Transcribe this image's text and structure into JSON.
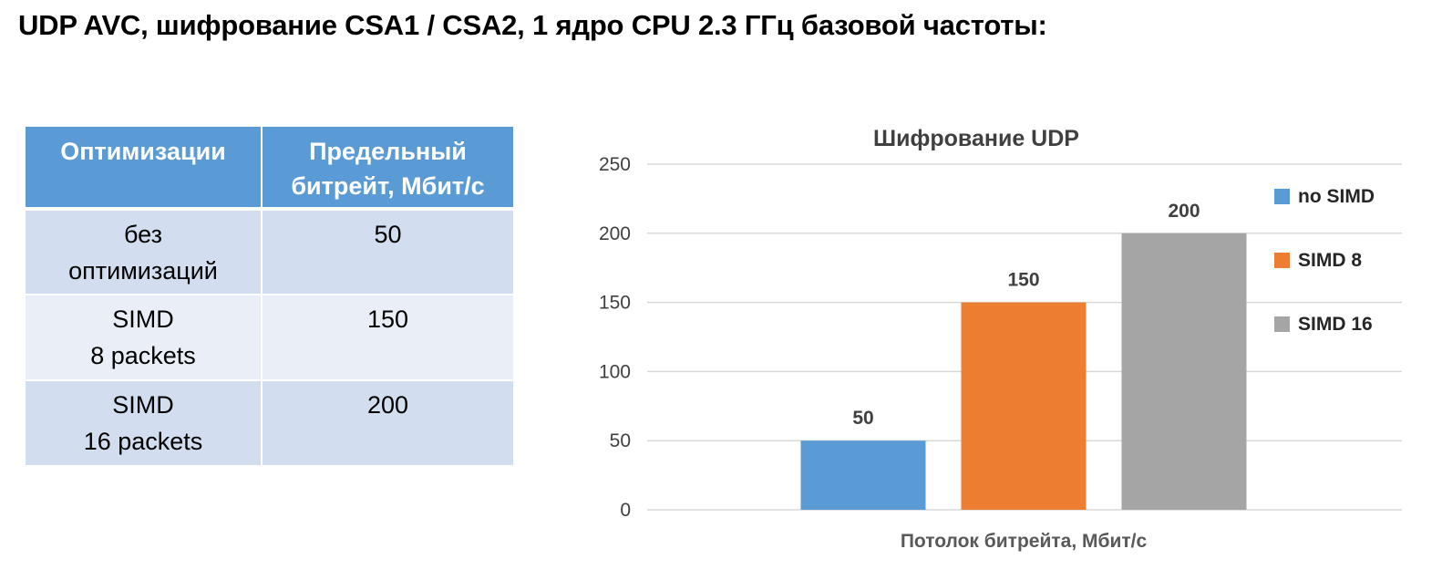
{
  "page": {
    "title": "UDP AVC, шифрование CSA1 / CSA2, 1 ядро CPU 2.3 ГГц базовой частоты:"
  },
  "table": {
    "headers": [
      "Оптимизации",
      "Предельный битрейт, Мбит/с"
    ],
    "rows": [
      {
        "opt_lines": [
          "без",
          "оптимизаций"
        ],
        "rate": "50"
      },
      {
        "opt_lines": [
          "SIMD",
          "8 packets"
        ],
        "rate": "150"
      },
      {
        "opt_lines": [
          "SIMD",
          "16 packets"
        ],
        "rate": "200"
      }
    ]
  },
  "chart_data": {
    "type": "bar",
    "title": "Шифрование UDP",
    "xlabel": "Потолок битрейта, Мбит/с",
    "ylabel": "",
    "ylim": [
      0,
      250
    ],
    "yticks": [
      0,
      50,
      100,
      150,
      200,
      250
    ],
    "grid": true,
    "legend_position": "right",
    "series": [
      {
        "name": "no SIMD",
        "values": [
          50
        ],
        "color": "#5b9bd5"
      },
      {
        "name": "SIMD 8",
        "values": [
          150
        ],
        "color": "#ed7d31"
      },
      {
        "name": "SIMD 16",
        "values": [
          200
        ],
        "color": "#a5a5a5"
      }
    ],
    "gridline_color": "#d9d9d9"
  }
}
